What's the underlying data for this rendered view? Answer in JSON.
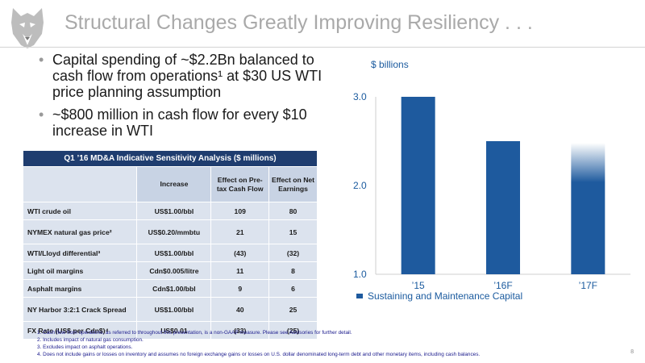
{
  "slide": {
    "title": "Structural Changes Greatly Improving Resiliency . . .",
    "page_number": "8",
    "logo_icon": "husky-dog-logo"
  },
  "bullets": [
    "Capital spending of ~$2.2Bn  balanced to cash flow from operations¹ at $30 US WTI price planning assumption",
    "~$800 million in cash flow for every $10 increase in WTI"
  ],
  "sensitivity_table": {
    "caption": "Q1 ’16 MD&A Indicative  Sensitivity Analysis ($ millions)",
    "headers": [
      "",
      "Increase",
      "Effect on Pre-tax Cash Flow",
      "Effect on Net Earnings"
    ],
    "rows": [
      {
        "label": "WTI crude oil",
        "increase": "US$1.00/bbl",
        "cash_flow": "109",
        "net_earnings": "80"
      },
      {
        "label": "NYMEX natural gas price²",
        "increase": "US$0.20/mmbtu",
        "cash_flow": "21",
        "net_earnings": "15"
      },
      {
        "label": "WTI/Lloyd differential³",
        "increase": "US$1.00/bbl",
        "cash_flow": "(43)",
        "net_earnings": "(32)"
      },
      {
        "label": "Light oil margins",
        "increase": "Cdn$0.005/litre",
        "cash_flow": "11",
        "net_earnings": "8"
      },
      {
        "label": "Asphalt margins",
        "increase": "Cdn$1.00/bbl",
        "cash_flow": "9",
        "net_earnings": "6"
      },
      {
        "label": "NY Harbor 3:2:1 Crack Spread",
        "increase": "US$1.00/bbl",
        "cash_flow": "40",
        "net_earnings": "25"
      },
      {
        "label": "FX Rate (US$ per Cdn$)⁴",
        "increase": "US$0.01",
        "cash_flow": "(33)",
        "net_earnings": "(25)"
      }
    ],
    "colors": {
      "caption_bg": "#1f3d6f",
      "header_bg": "#c8d3e4",
      "cell_bg": "#dce3ee"
    }
  },
  "chart_data": {
    "type": "bar",
    "categories": [
      "’15",
      "’16F",
      "’17F"
    ],
    "series": [
      {
        "name": "Sustaining and Maintenance Capital",
        "values": [
          3.0,
          2.5,
          2.48
        ]
      }
    ],
    "ylabel": "$ billions",
    "ylim": [
      1.0,
      3.0
    ],
    "yticks": [
      "1.0",
      "2.0",
      "3.0"
    ],
    "grid": false,
    "legend": "bottom",
    "bar_color": "#1e5a9e",
    "note": "’17F bar top fades out (gradient)"
  },
  "footnotes": [
    "1.  Cash flow from operations, as referred to throughout this presentation, is a non-GAAP measure. Please see Advisories for further detail.",
    "2.  Includes impact of natural gas consumption.",
    "3.  Excludes impact on asphalt operations.",
    "4.  Does not include gains or losses on inventory and assumes no foreign exchange gains or losses on U.S. dollar denominated long-term debt and other monetary items, including cash balances."
  ]
}
